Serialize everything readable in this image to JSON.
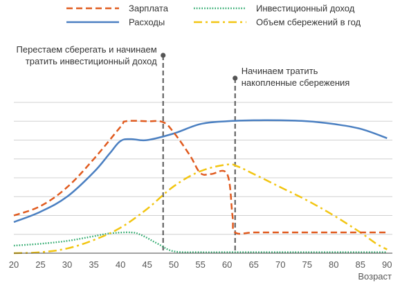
{
  "chart_data": {
    "type": "line",
    "xlabel": "Возраст",
    "ylabel": "",
    "xlim": [
      20,
      91
    ],
    "ylim": [
      0,
      8
    ],
    "x_ticks": [
      20,
      25,
      30,
      35,
      40,
      45,
      50,
      55,
      60,
      65,
      70,
      75,
      80,
      85,
      90
    ],
    "grid": true,
    "legend_position": "top",
    "series": [
      {
        "name": "Зарплата",
        "color": "#e05a1e",
        "style": "dashed",
        "points": [
          [
            20,
            2.0
          ],
          [
            25,
            2.5
          ],
          [
            30,
            3.5
          ],
          [
            35,
            5.0
          ],
          [
            40,
            6.7
          ],
          [
            41,
            7.0
          ],
          [
            45,
            7.0
          ],
          [
            48,
            6.95
          ],
          [
            50,
            6.4
          ],
          [
            53,
            5.2
          ],
          [
            55,
            4.25
          ],
          [
            57,
            4.2
          ],
          [
            60,
            4.2
          ],
          [
            61,
            2.0
          ],
          [
            61.5,
            1.1
          ],
          [
            65,
            1.1
          ],
          [
            70,
            1.1
          ],
          [
            75,
            1.1
          ],
          [
            80,
            1.1
          ],
          [
            85,
            1.1
          ],
          [
            90,
            1.1
          ]
        ]
      },
      {
        "name": "Инвестиционный доход",
        "color": "#2aa86a",
        "style": "dotted",
        "points": [
          [
            20,
            0.4
          ],
          [
            25,
            0.5
          ],
          [
            30,
            0.65
          ],
          [
            35,
            0.9
          ],
          [
            38,
            1.05
          ],
          [
            42,
            1.1
          ],
          [
            44,
            0.95
          ],
          [
            47,
            0.5
          ],
          [
            50,
            0.1
          ],
          [
            55,
            0.05
          ],
          [
            60,
            0.05
          ],
          [
            70,
            0.05
          ],
          [
            80,
            0.05
          ],
          [
            90,
            0.05
          ]
        ]
      },
      {
        "name": "Расходы",
        "color": "#4a7fc1",
        "style": "solid",
        "points": [
          [
            20,
            1.65
          ],
          [
            25,
            2.2
          ],
          [
            30,
            3.0
          ],
          [
            35,
            4.3
          ],
          [
            38,
            5.3
          ],
          [
            40,
            5.95
          ],
          [
            42,
            6.05
          ],
          [
            45,
            6.0
          ],
          [
            50,
            6.35
          ],
          [
            55,
            6.85
          ],
          [
            60,
            7.0
          ],
          [
            65,
            7.05
          ],
          [
            70,
            7.05
          ],
          [
            75,
            7.0
          ],
          [
            80,
            6.85
          ],
          [
            85,
            6.6
          ],
          [
            90,
            6.1
          ]
        ]
      },
      {
        "name": "Объем сбережений в год",
        "color": "#f2c511",
        "style": "dashdot",
        "points": [
          [
            20,
            0.0
          ],
          [
            25,
            0.05
          ],
          [
            30,
            0.25
          ],
          [
            35,
            0.7
          ],
          [
            40,
            1.35
          ],
          [
            45,
            2.35
          ],
          [
            50,
            3.55
          ],
          [
            55,
            4.35
          ],
          [
            60,
            4.7
          ],
          [
            62,
            4.6
          ],
          [
            65,
            4.2
          ],
          [
            70,
            3.5
          ],
          [
            75,
            2.8
          ],
          [
            80,
            2.0
          ],
          [
            85,
            1.1
          ],
          [
            88,
            0.5
          ],
          [
            90,
            0.2
          ]
        ]
      }
    ],
    "vlines": [
      {
        "x": 48,
        "label": "Перестаем сберегать и начинаем\nтратить инвестиционный доход",
        "align": "end"
      },
      {
        "x": 61.5,
        "label": "Начинаем тратить\nнакопленные сбережения",
        "align": "start"
      }
    ]
  },
  "colors": {
    "grid": "#d0d0d0",
    "axis": "#444444",
    "tick_label": "#555555",
    "vline": "#555555"
  }
}
